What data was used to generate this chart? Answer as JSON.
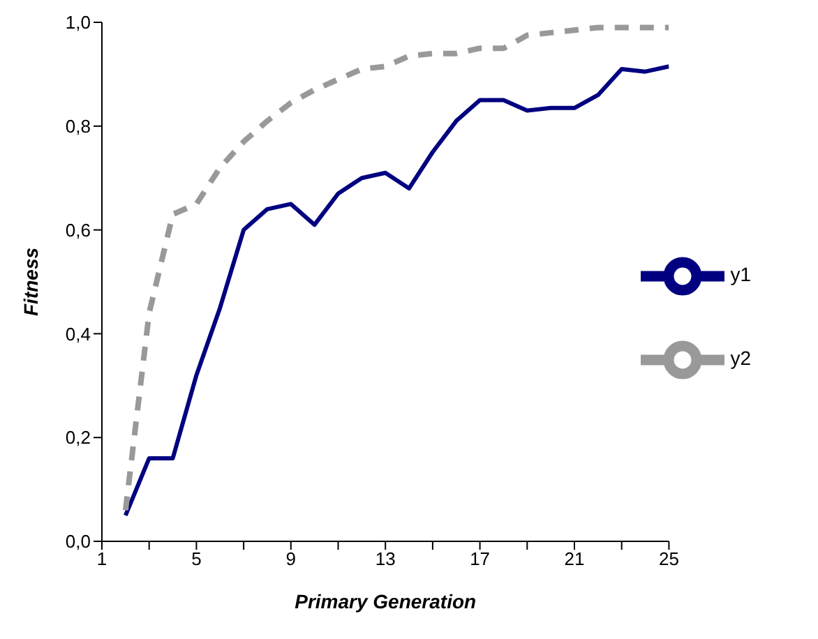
{
  "chart_data": {
    "type": "line",
    "xlabel": "Primary Generation",
    "ylabel": "Fitness",
    "x": [
      2,
      3,
      4,
      5,
      6,
      7,
      8,
      9,
      10,
      11,
      12,
      13,
      14,
      15,
      16,
      17,
      18,
      19,
      20,
      21,
      22,
      23,
      24,
      25
    ],
    "series": [
      {
        "name": "y1",
        "color": "#000080",
        "line_style": "solid",
        "values": [
          0.05,
          0.16,
          0.16,
          0.32,
          0.45,
          0.6,
          0.64,
          0.65,
          0.61,
          0.67,
          0.7,
          0.71,
          0.68,
          0.75,
          0.81,
          0.85,
          0.85,
          0.83,
          0.835,
          0.835,
          0.86,
          0.91,
          0.905,
          0.915
        ]
      },
      {
        "name": "y2",
        "color": "#999999",
        "line_style": "dashed",
        "values": [
          0.06,
          0.44,
          0.63,
          0.65,
          0.72,
          0.77,
          0.81,
          0.845,
          0.87,
          0.89,
          0.91,
          0.915,
          0.935,
          0.94,
          0.94,
          0.95,
          0.95,
          0.975,
          0.98,
          0.985,
          0.99,
          0.99,
          0.99,
          0.99
        ]
      }
    ],
    "xlim": [
      1,
      25
    ],
    "xticks": [
      1,
      {
        "value": 3,
        "label": null
      },
      5,
      {
        "value": 7,
        "label": null
      },
      9,
      {
        "value": 11,
        "label": null
      },
      13,
      {
        "value": 15,
        "label": null
      },
      17,
      {
        "value": 19,
        "label": null
      },
      21,
      {
        "value": 23,
        "label": null
      },
      25
    ],
    "ylim": [
      0,
      1
    ],
    "yticks": [
      {
        "value": 0,
        "label": "0,0"
      },
      {
        "value": 0.2,
        "label": "0,2"
      },
      {
        "value": 0.4,
        "label": "0,4"
      },
      {
        "value": 0.6,
        "label": "0,6"
      },
      {
        "value": 0.8,
        "label": "0,8"
      },
      {
        "value": 1,
        "label": "1,0"
      }
    ],
    "grid": false,
    "legend": "right",
    "marker": "none"
  }
}
